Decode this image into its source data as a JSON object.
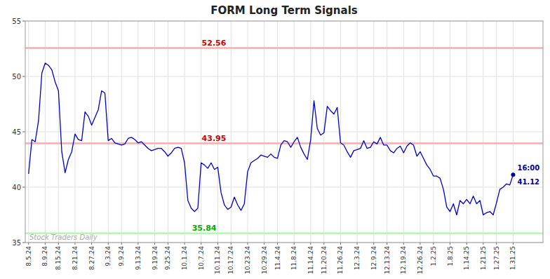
{
  "chart_data": {
    "type": "line",
    "title": "FORM Long Term Signals",
    "categories": [
      "8.5.24",
      null,
      null,
      null,
      null,
      "8.9.24",
      null,
      null,
      null,
      "8.15.24",
      null,
      null,
      null,
      null,
      "8.21.24",
      null,
      null,
      null,
      null,
      "8.27.24",
      null,
      null,
      null,
      null,
      "9.3.24",
      null,
      null,
      null,
      "9.9.24",
      null,
      null,
      null,
      null,
      "9.13.24",
      null,
      null,
      null,
      null,
      "9.19.24",
      null,
      null,
      null,
      "9.25.24",
      null,
      null,
      null,
      null,
      "10.1.24",
      null,
      null,
      null,
      null,
      "10.7.24",
      null,
      null,
      null,
      null,
      "10.11.24",
      null,
      null,
      null,
      "10.17.24",
      null,
      null,
      null,
      null,
      "10.23.24",
      null,
      null,
      null,
      null,
      "10.29.24",
      null,
      null,
      null,
      "11.4.24",
      null,
      null,
      null,
      null,
      "11.8.24",
      null,
      null,
      null,
      null,
      "11.14.24",
      null,
      null,
      null,
      "11.20.24",
      null,
      null,
      null,
      null,
      "11.26.24",
      null,
      null,
      null,
      null,
      "12.3.24",
      null,
      null,
      null,
      null,
      "12.9.24",
      null,
      null,
      null,
      "12.13.24",
      null,
      null,
      null,
      null,
      "12.19.24",
      null,
      null,
      null,
      null,
      "12.26.24",
      null,
      null,
      null,
      "1.2.25",
      null,
      null,
      null,
      null,
      "1.8.25",
      null,
      null,
      null,
      null,
      "1.14.25",
      null,
      null,
      null,
      null,
      "1.21.25",
      null,
      null,
      null,
      "1.27.25",
      null,
      null,
      null,
      null,
      "1.31.25"
    ],
    "values": [
      41.2,
      44.3,
      44.1,
      46.0,
      50.3,
      51.2,
      51.0,
      50.6,
      49.5,
      48.7,
      43.2,
      41.3,
      42.5,
      43.2,
      44.8,
      44.3,
      44.2,
      46.8,
      46.4,
      45.6,
      46.3,
      47.0,
      48.7,
      48.5,
      44.2,
      44.4,
      44.0,
      43.9,
      43.8,
      43.9,
      44.4,
      44.5,
      44.3,
      44.0,
      44.1,
      43.8,
      43.5,
      43.3,
      43.4,
      43.5,
      43.5,
      43.2,
      42.8,
      43.1,
      43.5,
      43.6,
      43.5,
      42.2,
      38.8,
      38.1,
      37.8,
      38.1,
      42.2,
      42.0,
      41.7,
      42.2,
      41.6,
      41.8,
      39.5,
      38.4,
      38.0,
      38.2,
      39.1,
      38.4,
      37.9,
      38.5,
      41.4,
      42.2,
      42.4,
      42.6,
      42.9,
      42.8,
      42.7,
      43.0,
      42.7,
      42.6,
      43.8,
      44.2,
      44.1,
      43.6,
      44.1,
      44.5,
      43.6,
      43.0,
      42.5,
      44.3,
      47.8,
      45.3,
      44.7,
      44.9,
      47.3,
      46.9,
      46.6,
      47.2,
      44.0,
      43.8,
      43.2,
      42.7,
      43.3,
      43.4,
      43.5,
      44.2,
      43.5,
      43.6,
      44.1,
      43.9,
      44.5,
      43.8,
      43.8,
      43.3,
      43.1,
      43.5,
      43.7,
      43.1,
      43.7,
      44.0,
      43.8,
      42.8,
      43.2,
      42.6,
      42.0,
      41.6,
      41.0,
      41.0,
      40.8,
      39.8,
      38.2,
      37.8,
      38.5,
      37.5,
      38.8,
      38.5,
      38.9,
      38.5,
      39.2,
      38.5,
      38.8,
      37.5,
      37.7,
      37.8,
      37.5,
      38.6,
      39.8,
      40.0,
      40.3,
      40.2,
      41.12
    ],
    "color": "#0000cc",
    "reference_lines": [
      {
        "value": 52.56,
        "color": "#ffaaaa",
        "label_color": "#cc0000"
      },
      {
        "value": 43.95,
        "color": "#ffaaaa",
        "label_color": "#cc0000"
      },
      {
        "value": 35.84,
        "color": "#aaffaa",
        "label_color": "#00aa00"
      }
    ],
    "last_point": {
      "value": 41.12,
      "label": "16:00",
      "color": "#000099"
    },
    "watermark": "Stock Traders Daily",
    "ylim": [
      35,
      55
    ],
    "yticks": [
      35,
      40,
      45,
      50,
      55
    ],
    "grid": true
  }
}
